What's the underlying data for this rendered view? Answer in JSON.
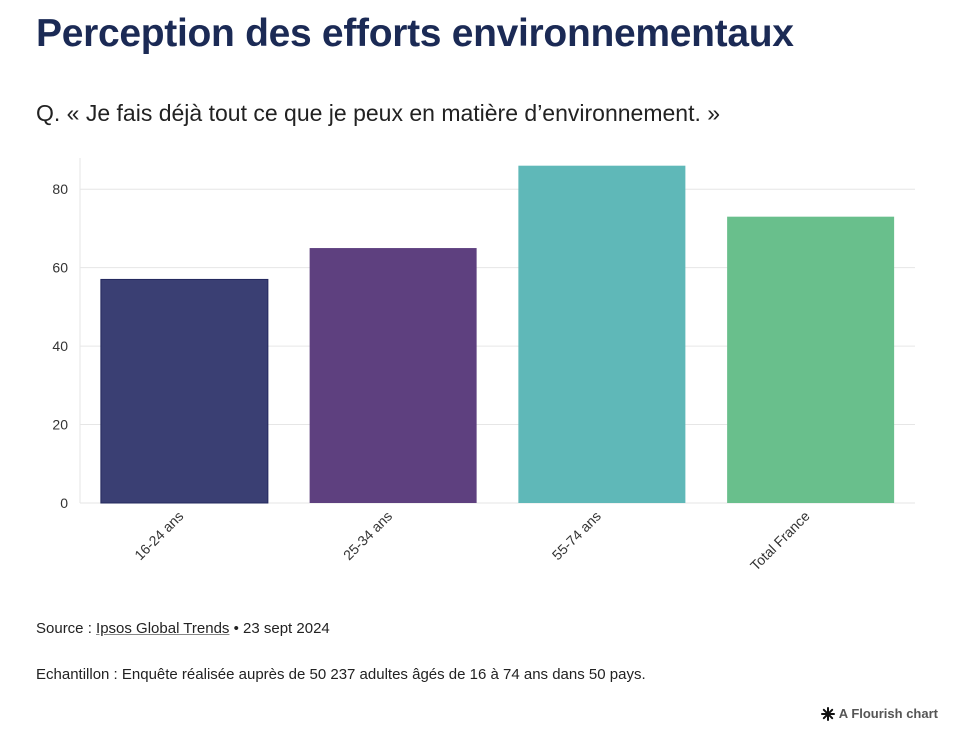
{
  "header": {
    "title": "Perception des efforts environnementaux",
    "subtitle": "Q. « Je fais déjà tout ce que je peux en matière d’environnement. »"
  },
  "colors": {
    "grid": "#e6e6e6",
    "axis_text": "#333333",
    "bars": [
      "#3a3f73",
      "#5e407f",
      "#5fb8b8",
      "#69bf8c"
    ]
  },
  "chart_data": {
    "type": "bar",
    "title": "",
    "xlabel": "",
    "ylabel": "",
    "categories": [
      "16-24 ans",
      "25-34 ans",
      "55-74 ans",
      "Total France"
    ],
    "values": [
      57,
      65,
      86,
      73
    ],
    "ylim": [
      0,
      90
    ],
    "yticks": [
      0,
      20,
      40,
      60,
      80
    ],
    "grid": true,
    "legend": "none"
  },
  "footer": {
    "source_prefix": "Source : ",
    "source_link": "Ipsos Global Trends",
    "source_suffix": " • 23 sept 2024",
    "sample": "Echantillon : Enquête réalisée auprès de 50 237 adultes âgés de 16 à 74 ans dans 50 pays.",
    "credit": "A Flourish chart",
    "credit_icon": "flourish-star-icon"
  }
}
